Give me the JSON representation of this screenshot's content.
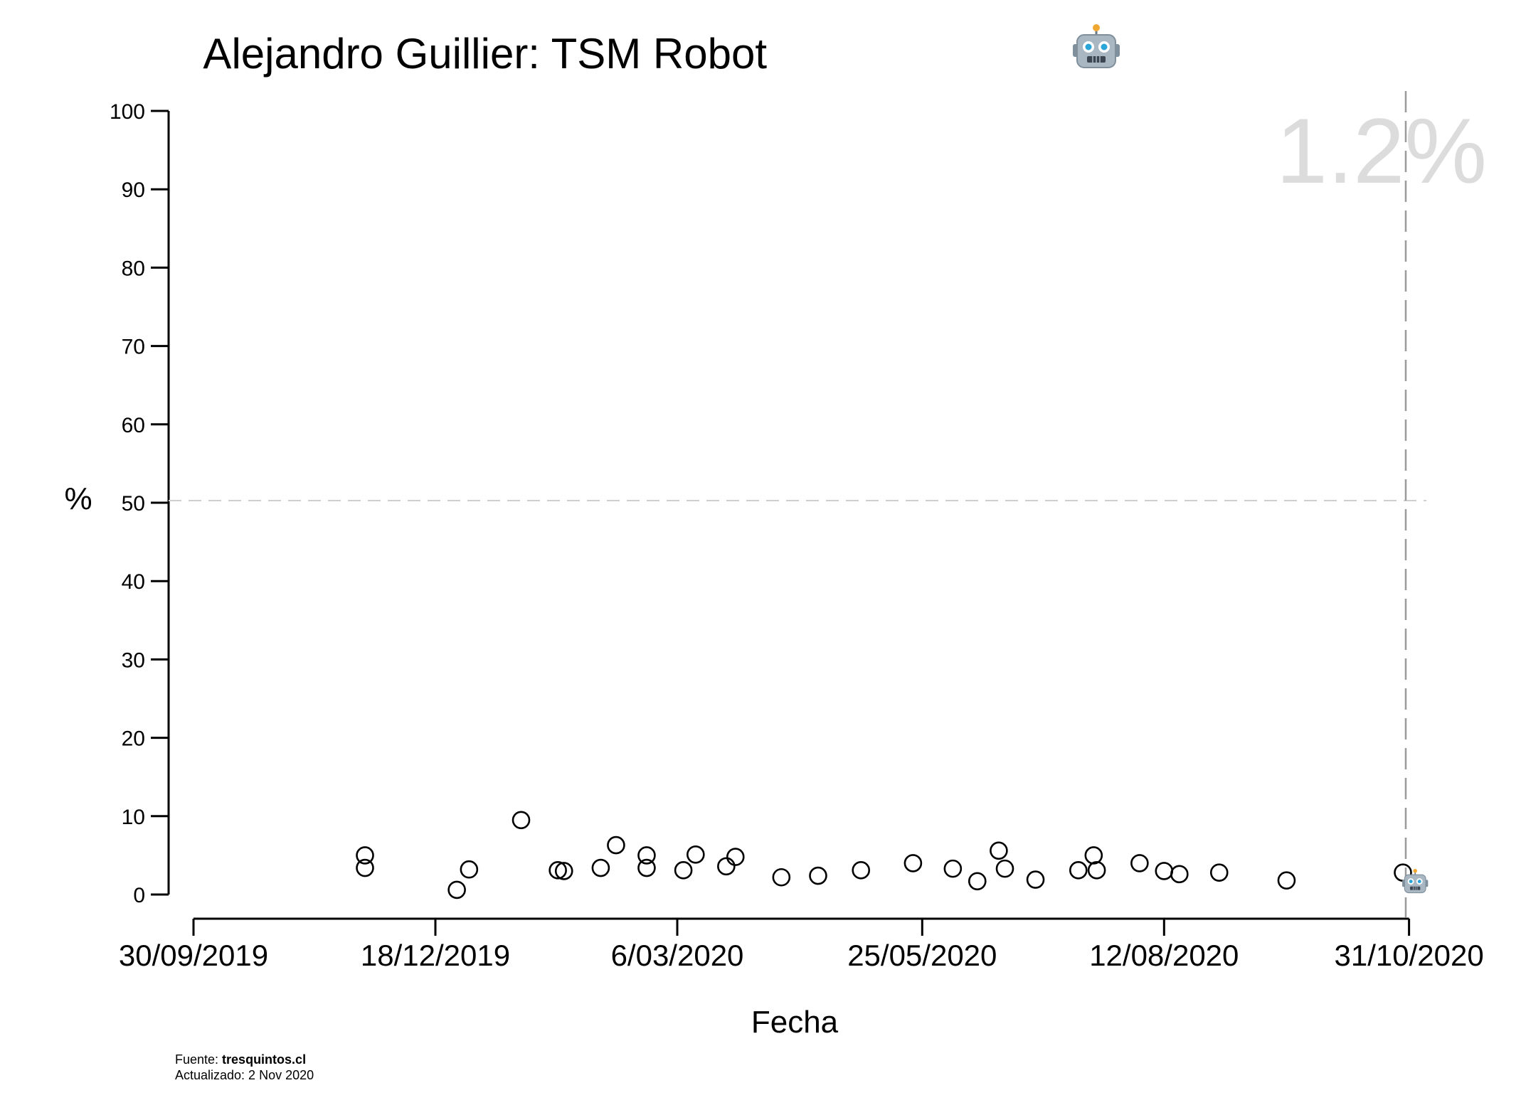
{
  "chart_data": {
    "type": "scatter",
    "title": "Alejandro Guillier: TSM Robot",
    "title_icon": "robot-icon",
    "xlabel": "Fecha",
    "ylabel": "%",
    "x_ticks": [
      "30/09/2019",
      "18/12/2019",
      "6/03/2020",
      "25/05/2020",
      "12/08/2020",
      "31/10/2020"
    ],
    "xlim": [
      "2019-09-30",
      "2020-11-02"
    ],
    "ylim": [
      0,
      100
    ],
    "y_ticks": [
      0,
      10,
      20,
      30,
      40,
      50,
      60,
      70,
      80,
      90,
      100
    ],
    "reference_lines": {
      "y": 50,
      "x": "2020-11-02",
      "style": "dashed"
    },
    "latest_value_label": "1.2%",
    "latest_marker_icon": "robot-icon",
    "latest_marker": {
      "x": "2020-11-02",
      "y": 1.2
    },
    "grid": false,
    "marker": "open-circle",
    "points": [
      {
        "x": "2019-11-25",
        "y": 5.0
      },
      {
        "x": "2019-11-25",
        "y": 3.4
      },
      {
        "x": "2019-12-25",
        "y": 0.6
      },
      {
        "x": "2019-12-29",
        "y": 3.2
      },
      {
        "x": "2020-01-15",
        "y": 9.5
      },
      {
        "x": "2020-01-27",
        "y": 3.1
      },
      {
        "x": "2020-01-29",
        "y": 3.0
      },
      {
        "x": "2020-02-10",
        "y": 3.4
      },
      {
        "x": "2020-02-15",
        "y": 6.3
      },
      {
        "x": "2020-02-25",
        "y": 5.0
      },
      {
        "x": "2020-02-25",
        "y": 3.4
      },
      {
        "x": "2020-03-08",
        "y": 3.1
      },
      {
        "x": "2020-03-12",
        "y": 5.1
      },
      {
        "x": "2020-03-22",
        "y": 3.6
      },
      {
        "x": "2020-03-25",
        "y": 4.8
      },
      {
        "x": "2020-04-09",
        "y": 2.2
      },
      {
        "x": "2020-04-21",
        "y": 2.4
      },
      {
        "x": "2020-05-05",
        "y": 3.1
      },
      {
        "x": "2020-05-22",
        "y": 4.0
      },
      {
        "x": "2020-06-04",
        "y": 3.3
      },
      {
        "x": "2020-06-12",
        "y": 1.7
      },
      {
        "x": "2020-06-19",
        "y": 5.6
      },
      {
        "x": "2020-06-21",
        "y": 3.3
      },
      {
        "x": "2020-07-01",
        "y": 1.9
      },
      {
        "x": "2020-07-15",
        "y": 3.1
      },
      {
        "x": "2020-07-20",
        "y": 5.0
      },
      {
        "x": "2020-07-21",
        "y": 3.1
      },
      {
        "x": "2020-08-04",
        "y": 4.0
      },
      {
        "x": "2020-08-12",
        "y": 3.0
      },
      {
        "x": "2020-08-17",
        "y": 2.6
      },
      {
        "x": "2020-08-30",
        "y": 2.8
      },
      {
        "x": "2020-09-21",
        "y": 1.8
      },
      {
        "x": "2020-10-29",
        "y": 2.8
      }
    ]
  },
  "footer": {
    "source_label": "Fuente: ",
    "source_value": "tresquintos.cl",
    "updated": "Actualizado: 2 Nov 2020"
  }
}
